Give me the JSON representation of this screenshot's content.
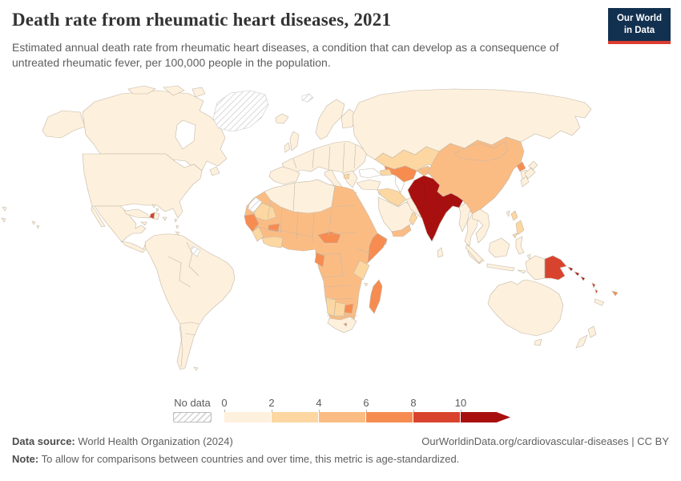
{
  "header": {
    "title": "Death rate from rheumatic heart diseases, 2021",
    "subtitle": "Estimated annual death rate from rheumatic heart diseases, a condition that can develop as a consequence of untreated rheumatic fever, per 100,000 people in the population.",
    "logo_line1": "Our World",
    "logo_line2": "in Data",
    "logo_bg": "#12304f",
    "logo_accent": "#dc3c31"
  },
  "legend": {
    "no_data_label": "No data",
    "tick_labels": [
      "0",
      "2",
      "4",
      "6",
      "8",
      "10"
    ],
    "bin_colors": [
      "#fdf0dd",
      "#fcd7a1",
      "#fbbc84",
      "#f78c51",
      "#d8432e",
      "#a81010"
    ],
    "no_data_pattern": "diagonal-hatch"
  },
  "footer": {
    "source_label": "Data source:",
    "source_text": " World Health Organization (2024)",
    "right_text": "OurWorldinData.org/cardiovascular-diseases | CC BY",
    "note_label": "Note:",
    "note_text": " To allow for comparisons between countries and over time, this metric is age-standardized."
  },
  "map": {
    "ocean_color": "#ffffff",
    "border_color": "#c4b8a6",
    "dark_border_color": "#8d1117",
    "hatch_line_color": "#cfcfcf",
    "region_fills": {
      "greenland": "hatch",
      "svalbard": "hatch",
      "western-sahara": "hatch",
      "french-guiana": "hatch",
      "alaska": "#fdf0dd",
      "canada": "#fdf0dd",
      "arctic-islands": "#fdf0dd",
      "newfoundland": "#fdf0dd",
      "usa": "#fdf0dd",
      "baja": "#fdf0dd",
      "mexico": "#fdf0dd",
      "central-america": "#fdf0dd",
      "cuba": "#fdf0dd",
      "jamaica": "#fdf0dd",
      "haiti": "#d8432e",
      "dominican-republic": "#fdf0dd",
      "puerto-rico": "#fdf0dd",
      "bahamas": "#fdf0dd",
      "lesser-antilles": "#fdf0dd",
      "south-america": "#fdf0dd",
      "falkland": "#fdf0dd",
      "hawaii": "#fdf0dd",
      "edge-fragments": "#fdf0dd",
      "iceland": "#fdf0dd",
      "uk": "#fdf0dd",
      "ireland": "#fdf0dd",
      "scandinavia": "#fdf0dd",
      "finland": "#fdf0dd",
      "europe-mainland": "#fdf0dd",
      "iberia": "#fdf0dd",
      "italy": "#fdf0dd",
      "sicily": "#fdf0dd",
      "balkans": "#fdf0dd",
      "balkan-spot": "#fcd7a1",
      "crete": "#fdf0dd",
      "russia": "#fdf0dd",
      "kazakhstan": "#fcd7a1",
      "uzbekistan-turkmenistan": "#f78c51",
      "kyrgyzstan-tajikistan": "#fbbc84",
      "caucasus": "#fcd7a1",
      "turkey": "#fdf0dd",
      "cyprus": "#fdf0dd",
      "syria-iraq": "#fcd7a1",
      "arabia": "#fdf0dd",
      "yemen": "#fbbc84",
      "oman": "#fcd7a1",
      "iran": "#fdf0dd",
      "south-asia": "#a81010",
      "sri-lanka": "#fdf0dd",
      "myanmar": "#fdf0dd",
      "thailand": "#fdf0dd",
      "indochina": "#fdf0dd",
      "malaysia": "#fdf0dd",
      "china": "#fbbc84",
      "mongolia": "#fbbc84",
      "north-korea": "#f78c51",
      "south-korea": "#fdf0dd",
      "japan": "#fdf0dd",
      "taiwan": "#fdf0dd",
      "philippines": "#fcd7a1",
      "sumatra": "#fdf0dd",
      "java": "#fdf0dd",
      "borneo": "#fdf0dd",
      "sulawesi": "#fdf0dd",
      "lesser-sunda": "#fdf0dd",
      "maluku": "#fdf0dd",
      "west-papua": "#fdf0dd",
      "papua-new-guinea": "#d8432e",
      "solomon-islands": "#a81010",
      "vanuatu": "#d8432e",
      "fiji": "#f78c51",
      "new-caledonia": "#fdf0dd",
      "australia": "#fdf0dd",
      "tasmania": "#fdf0dd",
      "new-zealand": "#fdf0dd",
      "africa-base": "#fbbc84",
      "north-africa": "#fdf0dd",
      "mauritania": "#fcd7a1",
      "senegal-guinea": "#f78c51",
      "sierra-leone-liberia": "#fcd7a1",
      "ivory-ghana": "#fcd7a1",
      "burkina": "#f78c51",
      "central-african-republic": "#f78c51",
      "somalia": "#f78c51",
      "kenya": "#fcd7a1",
      "gabon-congo": "#f78c51",
      "zimbabwe": "#f78c51",
      "namibia": "#fcd7a1",
      "botswana": "#fcd7a1",
      "south-africa": "#fdf0dd",
      "lesotho": "#f78c51",
      "madagascar": "#f78c51",
      "comoros": "#fdf0dd"
    }
  },
  "chart_data": {
    "type": "heatmap",
    "variant": "choropleth-world-map",
    "title": "Death rate from rheumatic heart diseases, 2021",
    "unit": "deaths per 100,000 people (age-standardized)",
    "year": "2021",
    "legend_position": "bottom",
    "bins": [
      {
        "label": "0-2",
        "color": "#fdf0dd"
      },
      {
        "label": "2-4",
        "color": "#fcd7a1"
      },
      {
        "label": "4-6",
        "color": "#fbbc84"
      },
      {
        "label": "6-8",
        "color": "#f78c51"
      },
      {
        "label": "8-10",
        "color": "#d8432e"
      },
      {
        "label": "10+",
        "color": "#a81010"
      },
      {
        "label": "No data",
        "color": "hatched"
      }
    ],
    "regions": [
      {
        "name": "United States",
        "bin": "0-2"
      },
      {
        "name": "Canada",
        "bin": "0-2"
      },
      {
        "name": "Greenland",
        "bin": "No data"
      },
      {
        "name": "Mexico",
        "bin": "0-2"
      },
      {
        "name": "Central America",
        "bin": "0-2"
      },
      {
        "name": "Cuba",
        "bin": "0-2"
      },
      {
        "name": "Haiti",
        "bin": "8-10"
      },
      {
        "name": "South America",
        "bin": "0-2"
      },
      {
        "name": "French Guiana",
        "bin": "No data"
      },
      {
        "name": "Europe",
        "bin": "0-2"
      },
      {
        "name": "Russia",
        "bin": "0-2"
      },
      {
        "name": "Morocco / Algeria / Libya",
        "bin": "0-2"
      },
      {
        "name": "Western Sahara",
        "bin": "No data"
      },
      {
        "name": "Egypt",
        "bin": "4-6"
      },
      {
        "name": "Mauritania",
        "bin": "2-4"
      },
      {
        "name": "Mali / Niger / Chad / Sudan",
        "bin": "4-6"
      },
      {
        "name": "Senegal / Guinea",
        "bin": "6-8"
      },
      {
        "name": "Burkina Faso",
        "bin": "6-8"
      },
      {
        "name": "Ghana / Cote d'Ivoire",
        "bin": "2-4"
      },
      {
        "name": "Nigeria",
        "bin": "4-6"
      },
      {
        "name": "Central African Republic",
        "bin": "6-8"
      },
      {
        "name": "Ethiopia",
        "bin": "4-6"
      },
      {
        "name": "Somalia",
        "bin": "6-8"
      },
      {
        "name": "Kenya",
        "bin": "2-4"
      },
      {
        "name": "DR Congo",
        "bin": "4-6"
      },
      {
        "name": "Congo / Gabon",
        "bin": "6-8"
      },
      {
        "name": "Angola / Zambia / Tanzania / Mozambique",
        "bin": "4-6"
      },
      {
        "name": "Zimbabwe",
        "bin": "6-8"
      },
      {
        "name": "Namibia / Botswana",
        "bin": "2-4"
      },
      {
        "name": "South Africa",
        "bin": "0-2"
      },
      {
        "name": "Lesotho",
        "bin": "6-8"
      },
      {
        "name": "Madagascar",
        "bin": "6-8"
      },
      {
        "name": "Turkey",
        "bin": "0-2"
      },
      {
        "name": "Saudi Arabia",
        "bin": "0-2"
      },
      {
        "name": "Yemen",
        "bin": "4-6"
      },
      {
        "name": "Oman",
        "bin": "2-4"
      },
      {
        "name": "Iraq / Syria",
        "bin": "2-4"
      },
      {
        "name": "Iran",
        "bin": "0-2"
      },
      {
        "name": "Kazakhstan",
        "bin": "2-4"
      },
      {
        "name": "Uzbekistan / Turkmenistan",
        "bin": "6-8"
      },
      {
        "name": "Kyrgyzstan / Tajikistan",
        "bin": "4-6"
      },
      {
        "name": "Afghanistan",
        "bin": "10+"
      },
      {
        "name": "Pakistan",
        "bin": "10+"
      },
      {
        "name": "India",
        "bin": "10+"
      },
      {
        "name": "Nepal",
        "bin": "10+"
      },
      {
        "name": "Bangladesh",
        "bin": "10+"
      },
      {
        "name": "Sri Lanka",
        "bin": "0-2"
      },
      {
        "name": "Myanmar",
        "bin": "0-2"
      },
      {
        "name": "Thailand / Vietnam / Cambodia / Laos",
        "bin": "0-2"
      },
      {
        "name": "Malaysia / Indonesia",
        "bin": "0-2"
      },
      {
        "name": "Philippines",
        "bin": "2-4"
      },
      {
        "name": "China",
        "bin": "4-6"
      },
      {
        "name": "Mongolia",
        "bin": "4-6"
      },
      {
        "name": "North Korea",
        "bin": "6-8"
      },
      {
        "name": "South Korea",
        "bin": "0-2"
      },
      {
        "name": "Japan",
        "bin": "0-2"
      },
      {
        "name": "Papua New Guinea",
        "bin": "8-10"
      },
      {
        "name": "Solomon Islands",
        "bin": "10+"
      },
      {
        "name": "Vanuatu",
        "bin": "8-10"
      },
      {
        "name": "Fiji",
        "bin": "6-8"
      },
      {
        "name": "Australia",
        "bin": "0-2"
      },
      {
        "name": "New Zealand",
        "bin": "0-2"
      }
    ]
  }
}
